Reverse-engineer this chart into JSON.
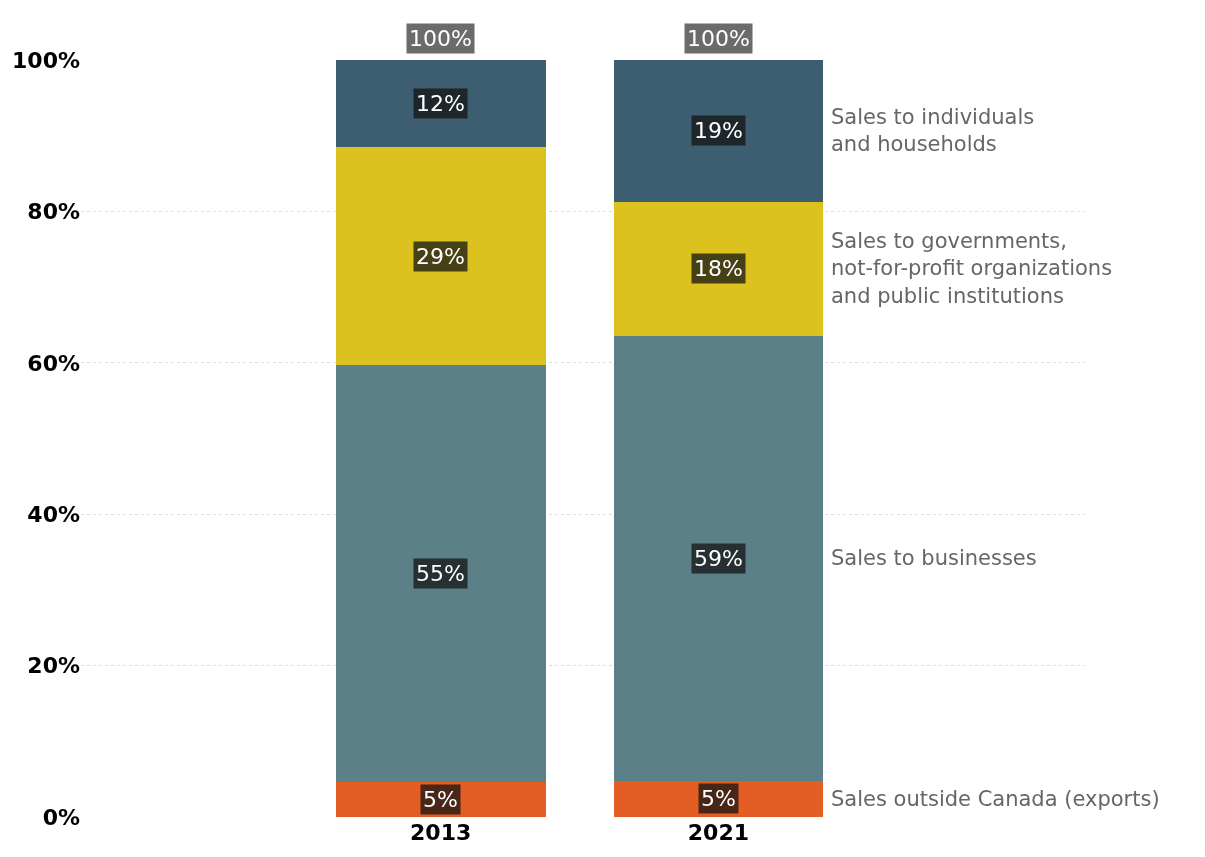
{
  "chart_data": {
    "type": "bar",
    "stacked": true,
    "categories": [
      "2013",
      "2021"
    ],
    "series": [
      {
        "name": "Sales outside Canada (exports)",
        "color": "#e35d24",
        "values": [
          4.6,
          4.8
        ],
        "value_labels": [
          "5%",
          "5%"
        ]
      },
      {
        "name": "Sales to businesses",
        "color": "#5b8087",
        "values": [
          55.1,
          58.7
        ],
        "value_labels": [
          "55%",
          "59%"
        ]
      },
      {
        "name": "Sales to governments,\nnot-for-profit organizations\nand public institutions",
        "color": "#dcc21f",
        "values": [
          28.8,
          17.8
        ],
        "value_labels": [
          "29%",
          "18%"
        ]
      },
      {
        "name": "Sales to individuals\nand households",
        "color": "#3d5d70",
        "values": [
          11.5,
          18.7
        ],
        "value_labels": [
          "12%",
          "19%"
        ]
      }
    ],
    "totals": [
      "100%",
      "100%"
    ],
    "ylim": [
      0,
      100
    ],
    "yticks": [
      {
        "value": 0,
        "label": "0%"
      },
      {
        "value": 20,
        "label": "20%"
      },
      {
        "value": 40,
        "label": "40%"
      },
      {
        "value": 60,
        "label": "60%"
      },
      {
        "value": 80,
        "label": "80%"
      },
      {
        "value": 100,
        "label": "100%"
      }
    ],
    "grid": "y",
    "legend": false
  }
}
